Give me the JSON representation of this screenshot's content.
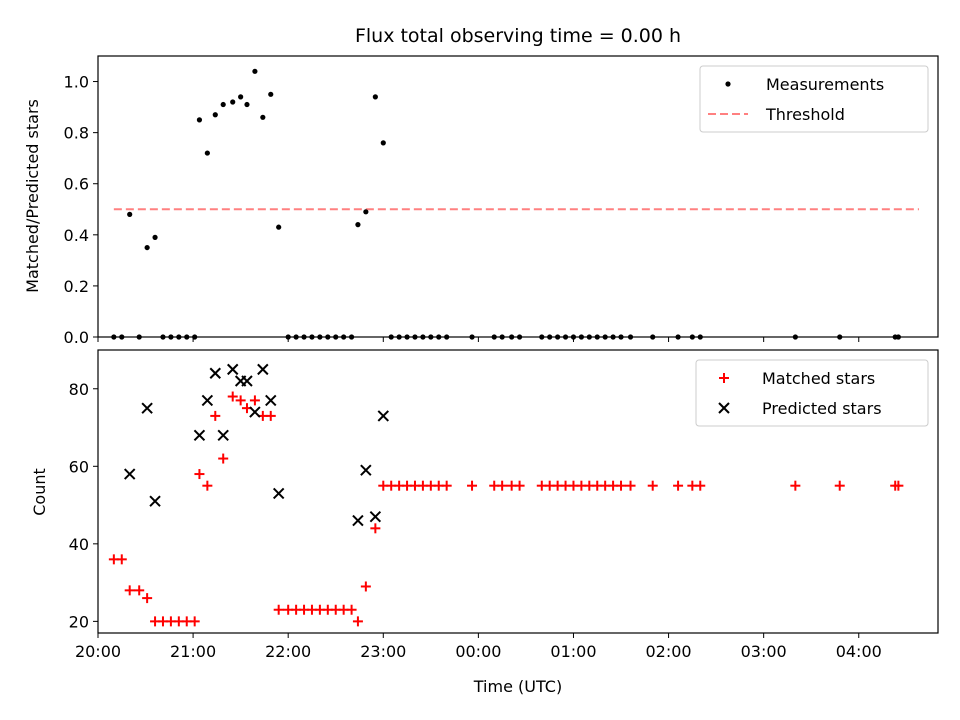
{
  "title": "Flux total observing time = 0.00 h",
  "xlabel": "Time (UTC)",
  "colors": {
    "measurement": "#000000",
    "threshold": "#ff8080",
    "matched": "#ff0000",
    "predicted": "#000000"
  },
  "chart_data": [
    {
      "type": "scatter",
      "title": "Flux total observing time = 0.00 h",
      "ylabel": "Matched/Predicted stars",
      "ylim": [
        0,
        1.1
      ],
      "yticks": [
        0.0,
        0.2,
        0.4,
        0.6,
        0.8,
        1.0
      ],
      "ytick_labels": [
        "0.0",
        "0.2",
        "0.4",
        "0.6",
        "0.8",
        "1.0"
      ],
      "xlim": [
        "20:00",
        "04:50"
      ],
      "legend_position": "top-right",
      "legend": [
        {
          "label": "Measurements",
          "marker": "dot"
        },
        {
          "label": "Threshold",
          "marker": "dashed-line"
        }
      ],
      "threshold": {
        "value": 0.5,
        "x_start": "20:10",
        "x_end": "04:38"
      },
      "series": [
        {
          "name": "Measurements",
          "marker": "dot",
          "points": [
            [
              "20:10",
              0
            ],
            [
              "20:15",
              0
            ],
            [
              "20:20",
              0.48
            ],
            [
              "20:26",
              0
            ],
            [
              "20:31",
              0.35
            ],
            [
              "20:36",
              0.39
            ],
            [
              "20:41",
              0
            ],
            [
              "20:46",
              0
            ],
            [
              "20:51",
              0
            ],
            [
              "20:56",
              0
            ],
            [
              "21:01",
              0
            ],
            [
              "21:04",
              0.85
            ],
            [
              "21:09",
              0.72
            ],
            [
              "21:14",
              0.87
            ],
            [
              "21:19",
              0.91
            ],
            [
              "21:25",
              0.92
            ],
            [
              "21:30",
              0.94
            ],
            [
              "21:34",
              0.91
            ],
            [
              "21:39",
              1.04
            ],
            [
              "21:44",
              0.86
            ],
            [
              "21:49",
              0.95
            ],
            [
              "21:54",
              0.43
            ],
            [
              "22:00",
              0
            ],
            [
              "22:05",
              0
            ],
            [
              "22:10",
              0
            ],
            [
              "22:15",
              0
            ],
            [
              "22:20",
              0
            ],
            [
              "22:25",
              0
            ],
            [
              "22:30",
              0
            ],
            [
              "22:35",
              0
            ],
            [
              "22:40",
              0
            ],
            [
              "22:44",
              0.44
            ],
            [
              "22:49",
              0.49
            ],
            [
              "22:55",
              0.94
            ],
            [
              "23:00",
              0.76
            ],
            [
              "23:05",
              0
            ],
            [
              "23:10",
              0
            ],
            [
              "23:15",
              0
            ],
            [
              "23:20",
              0
            ],
            [
              "23:25",
              0
            ],
            [
              "23:30",
              0
            ],
            [
              "23:35",
              0
            ],
            [
              "23:40",
              0
            ],
            [
              "23:56",
              0
            ],
            [
              "00:10",
              0
            ],
            [
              "00:15",
              0
            ],
            [
              "00:21",
              0
            ],
            [
              "00:26",
              0
            ],
            [
              "00:40",
              0
            ],
            [
              "00:45",
              0
            ],
            [
              "00:50",
              0
            ],
            [
              "00:55",
              0
            ],
            [
              "01:00",
              0
            ],
            [
              "01:05",
              0
            ],
            [
              "01:10",
              0
            ],
            [
              "01:15",
              0
            ],
            [
              "01:20",
              0
            ],
            [
              "01:25",
              0
            ],
            [
              "01:30",
              0
            ],
            [
              "01:36",
              0
            ],
            [
              "01:50",
              0
            ],
            [
              "02:06",
              0
            ],
            [
              "02:15",
              0
            ],
            [
              "02:20",
              0
            ],
            [
              "03:20",
              0
            ],
            [
              "03:48",
              0
            ],
            [
              "04:23",
              0
            ],
            [
              "04:25",
              0
            ]
          ]
        }
      ]
    },
    {
      "type": "scatter",
      "ylabel": "Count",
      "ylim": [
        17,
        90
      ],
      "yticks": [
        20,
        40,
        60,
        80
      ],
      "ytick_labels": [
        "20",
        "40",
        "60",
        "80"
      ],
      "xlim": [
        "20:00",
        "04:50"
      ],
      "xticks": [
        "20:00",
        "21:00",
        "22:00",
        "23:00",
        "00:00",
        "01:00",
        "02:00",
        "03:00",
        "04:00"
      ],
      "xlabel": "Time (UTC)",
      "legend_position": "top-right",
      "legend": [
        {
          "label": "Matched stars",
          "marker": "plus"
        },
        {
          "label": "Predicted stars",
          "marker": "x"
        }
      ],
      "series": [
        {
          "name": "Matched stars",
          "marker": "plus",
          "points": [
            [
              "20:10",
              36
            ],
            [
              "20:15",
              36
            ],
            [
              "20:20",
              28
            ],
            [
              "20:26",
              28
            ],
            [
              "20:31",
              26
            ],
            [
              "20:36",
              20
            ],
            [
              "20:41",
              20
            ],
            [
              "20:46",
              20
            ],
            [
              "20:51",
              20
            ],
            [
              "20:56",
              20
            ],
            [
              "21:01",
              20
            ],
            [
              "21:04",
              58
            ],
            [
              "21:09",
              55
            ],
            [
              "21:14",
              73
            ],
            [
              "21:19",
              62
            ],
            [
              "21:25",
              78
            ],
            [
              "21:30",
              77
            ],
            [
              "21:34",
              75
            ],
            [
              "21:39",
              77
            ],
            [
              "21:44",
              73
            ],
            [
              "21:49",
              73
            ],
            [
              "21:54",
              23
            ],
            [
              "22:00",
              23
            ],
            [
              "22:05",
              23
            ],
            [
              "22:10",
              23
            ],
            [
              "22:15",
              23
            ],
            [
              "22:20",
              23
            ],
            [
              "22:25",
              23
            ],
            [
              "22:30",
              23
            ],
            [
              "22:35",
              23
            ],
            [
              "22:40",
              23
            ],
            [
              "22:44",
              20
            ],
            [
              "22:49",
              29
            ],
            [
              "22:55",
              44
            ],
            [
              "23:00",
              55
            ],
            [
              "23:05",
              55
            ],
            [
              "23:10",
              55
            ],
            [
              "23:15",
              55
            ],
            [
              "23:20",
              55
            ],
            [
              "23:25",
              55
            ],
            [
              "23:30",
              55
            ],
            [
              "23:35",
              55
            ],
            [
              "23:40",
              55
            ],
            [
              "23:56",
              55
            ],
            [
              "00:10",
              55
            ],
            [
              "00:15",
              55
            ],
            [
              "00:21",
              55
            ],
            [
              "00:26",
              55
            ],
            [
              "00:40",
              55
            ],
            [
              "00:45",
              55
            ],
            [
              "00:50",
              55
            ],
            [
              "00:55",
              55
            ],
            [
              "01:00",
              55
            ],
            [
              "01:05",
              55
            ],
            [
              "01:10",
              55
            ],
            [
              "01:15",
              55
            ],
            [
              "01:20",
              55
            ],
            [
              "01:25",
              55
            ],
            [
              "01:30",
              55
            ],
            [
              "01:36",
              55
            ],
            [
              "01:50",
              55
            ],
            [
              "02:06",
              55
            ],
            [
              "02:15",
              55
            ],
            [
              "02:20",
              55
            ],
            [
              "03:20",
              55
            ],
            [
              "03:48",
              55
            ],
            [
              "04:23",
              55
            ],
            [
              "04:25",
              55
            ]
          ]
        },
        {
          "name": "Predicted stars",
          "marker": "x",
          "points": [
            [
              "20:20",
              58
            ],
            [
              "20:31",
              75
            ],
            [
              "20:36",
              51
            ],
            [
              "21:04",
              68
            ],
            [
              "21:09",
              77
            ],
            [
              "21:14",
              84
            ],
            [
              "21:19",
              68
            ],
            [
              "21:25",
              85
            ],
            [
              "21:30",
              82
            ],
            [
              "21:34",
              82
            ],
            [
              "21:39",
              74
            ],
            [
              "21:44",
              85
            ],
            [
              "21:49",
              77
            ],
            [
              "21:54",
              53
            ],
            [
              "22:44",
              46
            ],
            [
              "22:49",
              59
            ],
            [
              "22:55",
              47
            ],
            [
              "23:00",
              73
            ]
          ]
        }
      ]
    }
  ]
}
